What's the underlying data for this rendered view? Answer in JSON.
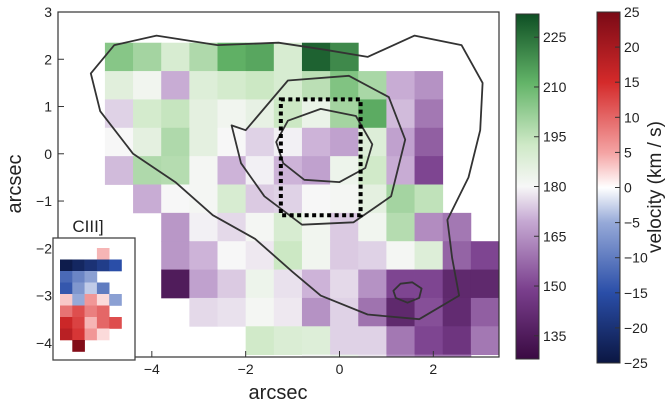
{
  "chart_data": {
    "type": "heatmap",
    "title": "",
    "xlabel": "arcsec",
    "ylabel": "arcsec",
    "xlim": [
      -6,
      3.4
    ],
    "ylim": [
      -4.3,
      3.0
    ],
    "x_ticks": [
      -4,
      -2,
      0,
      2
    ],
    "x_tick_labels": [
      "−4",
      "−2",
      "0",
      "2"
    ],
    "y_ticks": [
      -4,
      -3,
      -2,
      -1,
      0,
      1,
      2,
      3
    ],
    "y_tick_labels": [
      "−4",
      "−3",
      "−2",
      "−1",
      "0",
      "1",
      "2",
      "3"
    ],
    "grid": false,
    "pixel_size_arcsec": 0.6,
    "grid_origin": {
      "x": -5.6,
      "y_top": 2.35
    },
    "colormap": "purple-white-green",
    "colorbar_main": {
      "range": [
        128,
        232
      ],
      "ticks": [
        135,
        150,
        165,
        180,
        195,
        210,
        225
      ],
      "tick_labels": [
        "135",
        "150",
        "165",
        "180",
        "195",
        "210",
        "225"
      ],
      "colors": {
        "low": "#3a0a42",
        "mid": "#f7f7f7",
        "high": "#0e4f24"
      }
    },
    "colorbar_velocity": {
      "label": "velocity (km / s)",
      "range": [
        -25,
        25
      ],
      "ticks": [
        25,
        20,
        15,
        10,
        5,
        0,
        -5,
        -10,
        -15,
        -20,
        -25
      ],
      "tick_labels": [
        "25",
        "20",
        "15",
        "10",
        "5",
        "0",
        "−5",
        "−10",
        "−15",
        "−20",
        "−25"
      ],
      "colors": {
        "low": "#0b1642",
        "mid": "#ffffff",
        "high": "#7a0a16"
      }
    },
    "map_cells": [
      [
        null,
        205,
        200,
        190,
        198,
        212,
        214,
        190,
        228,
        220,
        null,
        null,
        null,
        null,
        null,
        null,
        null
      ],
      [
        null,
        187,
        182,
        170,
        188,
        191,
        193,
        190,
        196,
        206,
        199,
        170,
        165,
        null,
        null,
        null,
        null
      ],
      [
        null,
        175,
        191,
        194,
        186,
        182,
        185,
        193,
        184,
        200,
        213,
        172,
        160,
        null,
        null,
        null,
        null
      ],
      [
        null,
        180,
        186,
        198,
        186,
        180,
        175,
        179,
        171,
        168,
        188,
        168,
        155,
        null,
        null,
        null,
        null
      ],
      [
        null,
        172,
        198,
        197,
        181,
        171,
        179,
        171,
        168,
        183,
        192,
        170,
        150,
        null,
        null,
        null,
        null
      ],
      [
        null,
        null,
        170,
        180,
        181,
        190,
        174,
        175,
        180,
        181,
        186,
        200,
        195,
        null,
        null,
        null,
        null
      ],
      [
        null,
        null,
        null,
        166,
        179,
        176,
        181,
        190,
        182,
        174,
        182,
        197,
        164,
        160,
        null,
        null,
        null
      ],
      [
        null,
        null,
        null,
        166,
        171,
        180,
        178,
        193,
        182,
        174,
        175,
        181,
        188,
        156,
        150,
        null,
        null
      ],
      [
        null,
        null,
        null,
        135,
        168,
        174,
        183,
        177,
        171,
        176,
        165,
        150,
        150,
        140,
        140,
        160,
        null
      ],
      [
        null,
        null,
        null,
        null,
        176,
        177,
        181,
        178,
        165,
        175,
        159,
        140,
        152,
        141,
        155,
        150,
        155
      ],
      [
        null,
        null,
        null,
        null,
        null,
        null,
        192,
        189,
        188,
        175,
        175,
        160,
        150,
        145,
        160,
        165,
        165
      ],
      [
        null,
        null,
        null,
        null,
        null,
        null,
        null,
        null,
        180,
        184,
        178,
        165,
        160,
        160,
        null,
        null,
        null
      ],
      [
        null,
        null,
        null,
        null,
        null,
        null,
        null,
        null,
        null,
        null,
        170,
        170,
        null,
        null,
        null,
        null,
        null
      ]
    ],
    "contours_arcsec": [
      [
        [
          -4.8,
          2.3
        ],
        [
          -3.9,
          2.5
        ],
        [
          -2.6,
          2.3
        ],
        [
          -1.3,
          2.35
        ],
        [
          -0.3,
          2.2
        ],
        [
          0.6,
          2.05
        ],
        [
          1.6,
          2.5
        ],
        [
          2.6,
          2.3
        ],
        [
          3.05,
          1.5
        ],
        [
          3.0,
          0.5
        ],
        [
          2.75,
          -0.5
        ],
        [
          2.3,
          -1.4
        ],
        [
          2.4,
          -2.2
        ],
        [
          2.55,
          -3.0
        ],
        [
          1.7,
          -3.5
        ],
        [
          0.6,
          -3.4
        ],
        [
          -0.4,
          -3.0
        ],
        [
          -1.0,
          -2.5
        ],
        [
          -1.8,
          -1.8
        ],
        [
          -2.7,
          -1.3
        ],
        [
          -3.5,
          -0.6
        ],
        [
          -4.4,
          0.0
        ],
        [
          -5.1,
          0.9
        ],
        [
          -5.3,
          1.7
        ],
        [
          -4.8,
          2.3
        ]
      ],
      [
        [
          -2.3,
          0.6
        ],
        [
          -2.0,
          0.5
        ],
        [
          -1.1,
          1.55
        ],
        [
          0.2,
          1.65
        ],
        [
          1.05,
          1.2
        ],
        [
          1.4,
          0.3
        ],
        [
          1.1,
          -0.9
        ],
        [
          0.3,
          -1.45
        ],
        [
          -0.8,
          -1.5
        ],
        [
          -1.6,
          -0.9
        ],
        [
          -2.1,
          -0.2
        ],
        [
          -2.3,
          0.6
        ]
      ],
      [
        [
          -1.35,
          0.25
        ],
        [
          -1.1,
          0.7
        ],
        [
          -0.4,
          0.95
        ],
        [
          0.35,
          0.8
        ],
        [
          0.7,
          0.2
        ],
        [
          0.55,
          -0.3
        ],
        [
          0.0,
          -0.6
        ],
        [
          -0.75,
          -0.55
        ],
        [
          -1.2,
          -0.2
        ],
        [
          -1.35,
          0.25
        ]
      ],
      [
        [
          1.15,
          -2.9
        ],
        [
          1.3,
          -2.75
        ],
        [
          1.55,
          -2.72
        ],
        [
          1.75,
          -2.85
        ],
        [
          1.7,
          -3.05
        ],
        [
          1.45,
          -3.15
        ],
        [
          1.2,
          -3.05
        ],
        [
          1.15,
          -2.9
        ]
      ]
    ],
    "annotation_box_arcsec": {
      "x0": -1.25,
      "x1": 0.45,
      "y0": -1.3,
      "y1": 1.15
    },
    "inset": {
      "label": "CIII]",
      "cells": [
        [
          null,
          null,
          null,
          4,
          null
        ],
        [
          -24,
          -22,
          -20,
          -18,
          -15
        ],
        [
          -12,
          -9,
          -6,
          null,
          null
        ],
        [
          -14,
          -7,
          -3,
          -10,
          null
        ],
        [
          3,
          -5,
          6,
          2,
          -6
        ],
        [
          9,
          12,
          8,
          10,
          null
        ],
        [
          16,
          13,
          4,
          10,
          12
        ],
        [
          18,
          14,
          6,
          2,
          null
        ],
        [
          null,
          24,
          null,
          null,
          null
        ]
      ]
    }
  }
}
